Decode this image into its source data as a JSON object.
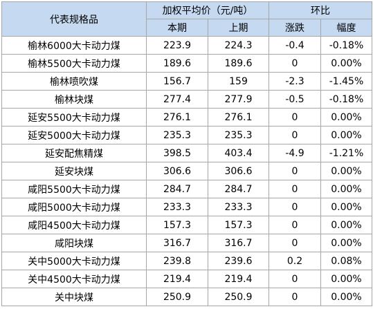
{
  "header": {
    "name_label": "代表规格品",
    "price_group_label": "加权平均价（元/吨）",
    "ring_group_label": "环比",
    "current_label": "本期",
    "previous_label": "上期",
    "change_label": "涨跌",
    "pct_label": "幅度"
  },
  "colors": {
    "header_bg": "#c5d9f1",
    "border": "#a6a6a6"
  },
  "rows": [
    {
      "name": "榆林6000大卡动力煤",
      "current": "223.9",
      "previous": "224.3",
      "change": "-0.4",
      "pct": "-0.18%"
    },
    {
      "name": "榆林5500大卡动力煤",
      "current": "189.6",
      "previous": "189.6",
      "change": "0",
      "pct": "0.00%"
    },
    {
      "name": "榆林喷吹煤",
      "current": "156.7",
      "previous": "159",
      "change": "-2.3",
      "pct": "-1.45%"
    },
    {
      "name": "榆林块煤",
      "current": "277.4",
      "previous": "277.9",
      "change": "-0.5",
      "pct": "-0.18%"
    },
    {
      "name": "延安5500大卡动力煤",
      "current": "276.1",
      "previous": "276.1",
      "change": "0",
      "pct": "0.00%"
    },
    {
      "name": "延安5000大卡动力煤",
      "current": "235.3",
      "previous": "235.3",
      "change": "0",
      "pct": "0.00%"
    },
    {
      "name": "延安配焦精煤",
      "current": "398.5",
      "previous": "403.4",
      "change": "-4.9",
      "pct": "-1.21%"
    },
    {
      "name": "延安块煤",
      "current": "306.6",
      "previous": "306.6",
      "change": "0",
      "pct": "0.00%"
    },
    {
      "name": "咸阳5500大卡动力煤",
      "current": "284.7",
      "previous": "284.7",
      "change": "0",
      "pct": "0.00%"
    },
    {
      "name": "咸阳5000大卡动力煤",
      "current": "233.3",
      "previous": "233.3",
      "change": "0",
      "pct": "0.00%"
    },
    {
      "name": "咸阳4500大卡动力煤",
      "current": "157.3",
      "previous": "157.3",
      "change": "0",
      "pct": "0.00%"
    },
    {
      "name": "咸阳块煤",
      "current": "316.7",
      "previous": "316.7",
      "change": "0",
      "pct": "0.00%"
    },
    {
      "name": "关中5000大卡动力煤",
      "current": "239.8",
      "previous": "239.6",
      "change": "0.2",
      "pct": "0.08%"
    },
    {
      "name": "关中4500大卡动力煤",
      "current": "219.4",
      "previous": "219.4",
      "change": "0",
      "pct": "0.00%"
    },
    {
      "name": "关中块煤",
      "current": "250.9",
      "previous": "250.9",
      "change": "0",
      "pct": "0.00%"
    }
  ]
}
